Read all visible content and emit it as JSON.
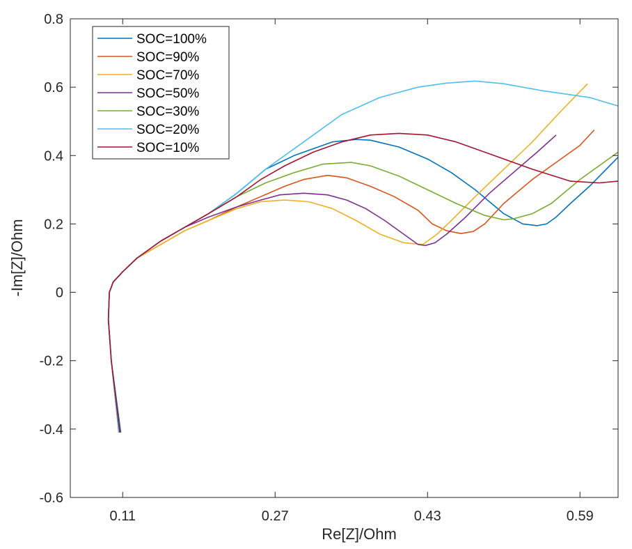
{
  "chart_data": {
    "type": "line",
    "title": "",
    "xlabel": "Re[Z]/Ohm",
    "ylabel": "-Im[Z]/Ohm",
    "xlim": [
      0.055,
      0.63
    ],
    "ylim": [
      -0.6,
      0.8
    ],
    "xticks": [
      0.11,
      0.27,
      0.43,
      0.59
    ],
    "xtick_labels": [
      "0.11",
      "0.27",
      "0.43",
      "0.59"
    ],
    "yticks": [
      -0.6,
      -0.4,
      -0.2,
      0,
      0.2,
      0.4,
      0.6,
      0.8
    ],
    "ytick_labels": [
      "-0.6",
      "-0.4",
      "-0.2",
      "0",
      "0.2",
      "0.4",
      "0.6",
      "0.8"
    ],
    "grid": false,
    "legend_position": "top-left",
    "series": [
      {
        "name": "SOC=100%",
        "color": "#0072BD",
        "x": [
          0.108,
          0.098,
          0.095,
          0.096,
          0.1,
          0.11,
          0.125,
          0.15,
          0.175,
          0.2,
          0.23,
          0.26,
          0.29,
          0.31,
          0.33,
          0.355,
          0.37,
          0.4,
          0.43,
          0.455,
          0.48,
          0.51,
          0.53,
          0.545,
          0.555,
          0.565,
          0.58,
          0.6,
          0.63
        ],
        "y": [
          -0.41,
          -0.2,
          -0.08,
          0.0,
          0.03,
          0.06,
          0.1,
          0.15,
          0.19,
          0.23,
          0.29,
          0.36,
          0.4,
          0.42,
          0.44,
          0.447,
          0.445,
          0.425,
          0.39,
          0.35,
          0.3,
          0.23,
          0.2,
          0.195,
          0.2,
          0.22,
          0.26,
          0.31,
          0.395
        ]
      },
      {
        "name": "SOC=90%",
        "color": "#D95319",
        "x": [
          0.107,
          0.098,
          0.095,
          0.096,
          0.1,
          0.11,
          0.125,
          0.15,
          0.175,
          0.2,
          0.23,
          0.255,
          0.28,
          0.3,
          0.325,
          0.345,
          0.37,
          0.395,
          0.42,
          0.435,
          0.45,
          0.465,
          0.478,
          0.49,
          0.51,
          0.54,
          0.565,
          0.59,
          0.605
        ],
        "y": [
          -0.41,
          -0.2,
          -0.08,
          0.0,
          0.03,
          0.06,
          0.1,
          0.14,
          0.18,
          0.21,
          0.25,
          0.28,
          0.31,
          0.33,
          0.342,
          0.335,
          0.31,
          0.28,
          0.24,
          0.2,
          0.18,
          0.172,
          0.178,
          0.2,
          0.26,
          0.33,
          0.38,
          0.43,
          0.475
        ]
      },
      {
        "name": "SOC=70%",
        "color": "#EDB120",
        "x": [
          0.106,
          0.098,
          0.095,
          0.096,
          0.1,
          0.11,
          0.125,
          0.15,
          0.175,
          0.2,
          0.23,
          0.255,
          0.28,
          0.305,
          0.33,
          0.355,
          0.38,
          0.405,
          0.425,
          0.44,
          0.455,
          0.48,
          0.51,
          0.54,
          0.57,
          0.598
        ],
        "y": [
          -0.41,
          -0.2,
          -0.08,
          0.0,
          0.03,
          0.06,
          0.1,
          0.14,
          0.18,
          0.21,
          0.245,
          0.265,
          0.27,
          0.265,
          0.245,
          0.21,
          0.17,
          0.145,
          0.14,
          0.17,
          0.21,
          0.28,
          0.36,
          0.44,
          0.53,
          0.61
        ]
      },
      {
        "name": "SOC=50%",
        "color": "#7E2F8E",
        "x": [
          0.106,
          0.098,
          0.095,
          0.096,
          0.1,
          0.11,
          0.125,
          0.15,
          0.175,
          0.2,
          0.23,
          0.255,
          0.275,
          0.3,
          0.325,
          0.345,
          0.365,
          0.385,
          0.405,
          0.42,
          0.428,
          0.438,
          0.45,
          0.47,
          0.495,
          0.52,
          0.545,
          0.565
        ],
        "y": [
          -0.41,
          -0.2,
          -0.08,
          0.0,
          0.03,
          0.06,
          0.1,
          0.15,
          0.19,
          0.22,
          0.25,
          0.27,
          0.285,
          0.29,
          0.285,
          0.27,
          0.245,
          0.21,
          0.17,
          0.14,
          0.137,
          0.145,
          0.17,
          0.22,
          0.29,
          0.35,
          0.41,
          0.46
        ]
      },
      {
        "name": "SOC=30%",
        "color": "#77AC30",
        "x": [
          0.106,
          0.098,
          0.095,
          0.096,
          0.1,
          0.11,
          0.125,
          0.15,
          0.175,
          0.2,
          0.23,
          0.26,
          0.29,
          0.32,
          0.35,
          0.37,
          0.4,
          0.43,
          0.46,
          0.49,
          0.51,
          0.52,
          0.54,
          0.56,
          0.59,
          0.63
        ],
        "y": [
          -0.41,
          -0.2,
          -0.08,
          0.0,
          0.03,
          0.06,
          0.1,
          0.15,
          0.19,
          0.23,
          0.28,
          0.32,
          0.35,
          0.375,
          0.38,
          0.37,
          0.34,
          0.3,
          0.26,
          0.225,
          0.212,
          0.215,
          0.23,
          0.26,
          0.33,
          0.41
        ]
      },
      {
        "name": "SOC=20%",
        "color": "#4DBEEE",
        "x": [
          0.106,
          0.098,
          0.095,
          0.096,
          0.1,
          0.11,
          0.125,
          0.15,
          0.175,
          0.2,
          0.23,
          0.26,
          0.3,
          0.34,
          0.38,
          0.42,
          0.45,
          0.48,
          0.51,
          0.55,
          0.6,
          0.63
        ],
        "y": [
          -0.41,
          -0.2,
          -0.08,
          0.0,
          0.03,
          0.06,
          0.1,
          0.15,
          0.19,
          0.23,
          0.29,
          0.36,
          0.44,
          0.52,
          0.57,
          0.6,
          0.612,
          0.618,
          0.61,
          0.59,
          0.57,
          0.545
        ]
      },
      {
        "name": "SOC=10%",
        "color": "#A2142F",
        "x": [
          0.107,
          0.098,
          0.095,
          0.096,
          0.1,
          0.11,
          0.125,
          0.15,
          0.175,
          0.2,
          0.23,
          0.255,
          0.28,
          0.31,
          0.34,
          0.37,
          0.4,
          0.43,
          0.46,
          0.5,
          0.54,
          0.58,
          0.61,
          0.63
        ],
        "y": [
          -0.41,
          -0.2,
          -0.08,
          0.0,
          0.03,
          0.06,
          0.1,
          0.15,
          0.19,
          0.23,
          0.28,
          0.33,
          0.37,
          0.41,
          0.44,
          0.46,
          0.465,
          0.46,
          0.44,
          0.4,
          0.36,
          0.325,
          0.32,
          0.325
        ]
      }
    ]
  }
}
